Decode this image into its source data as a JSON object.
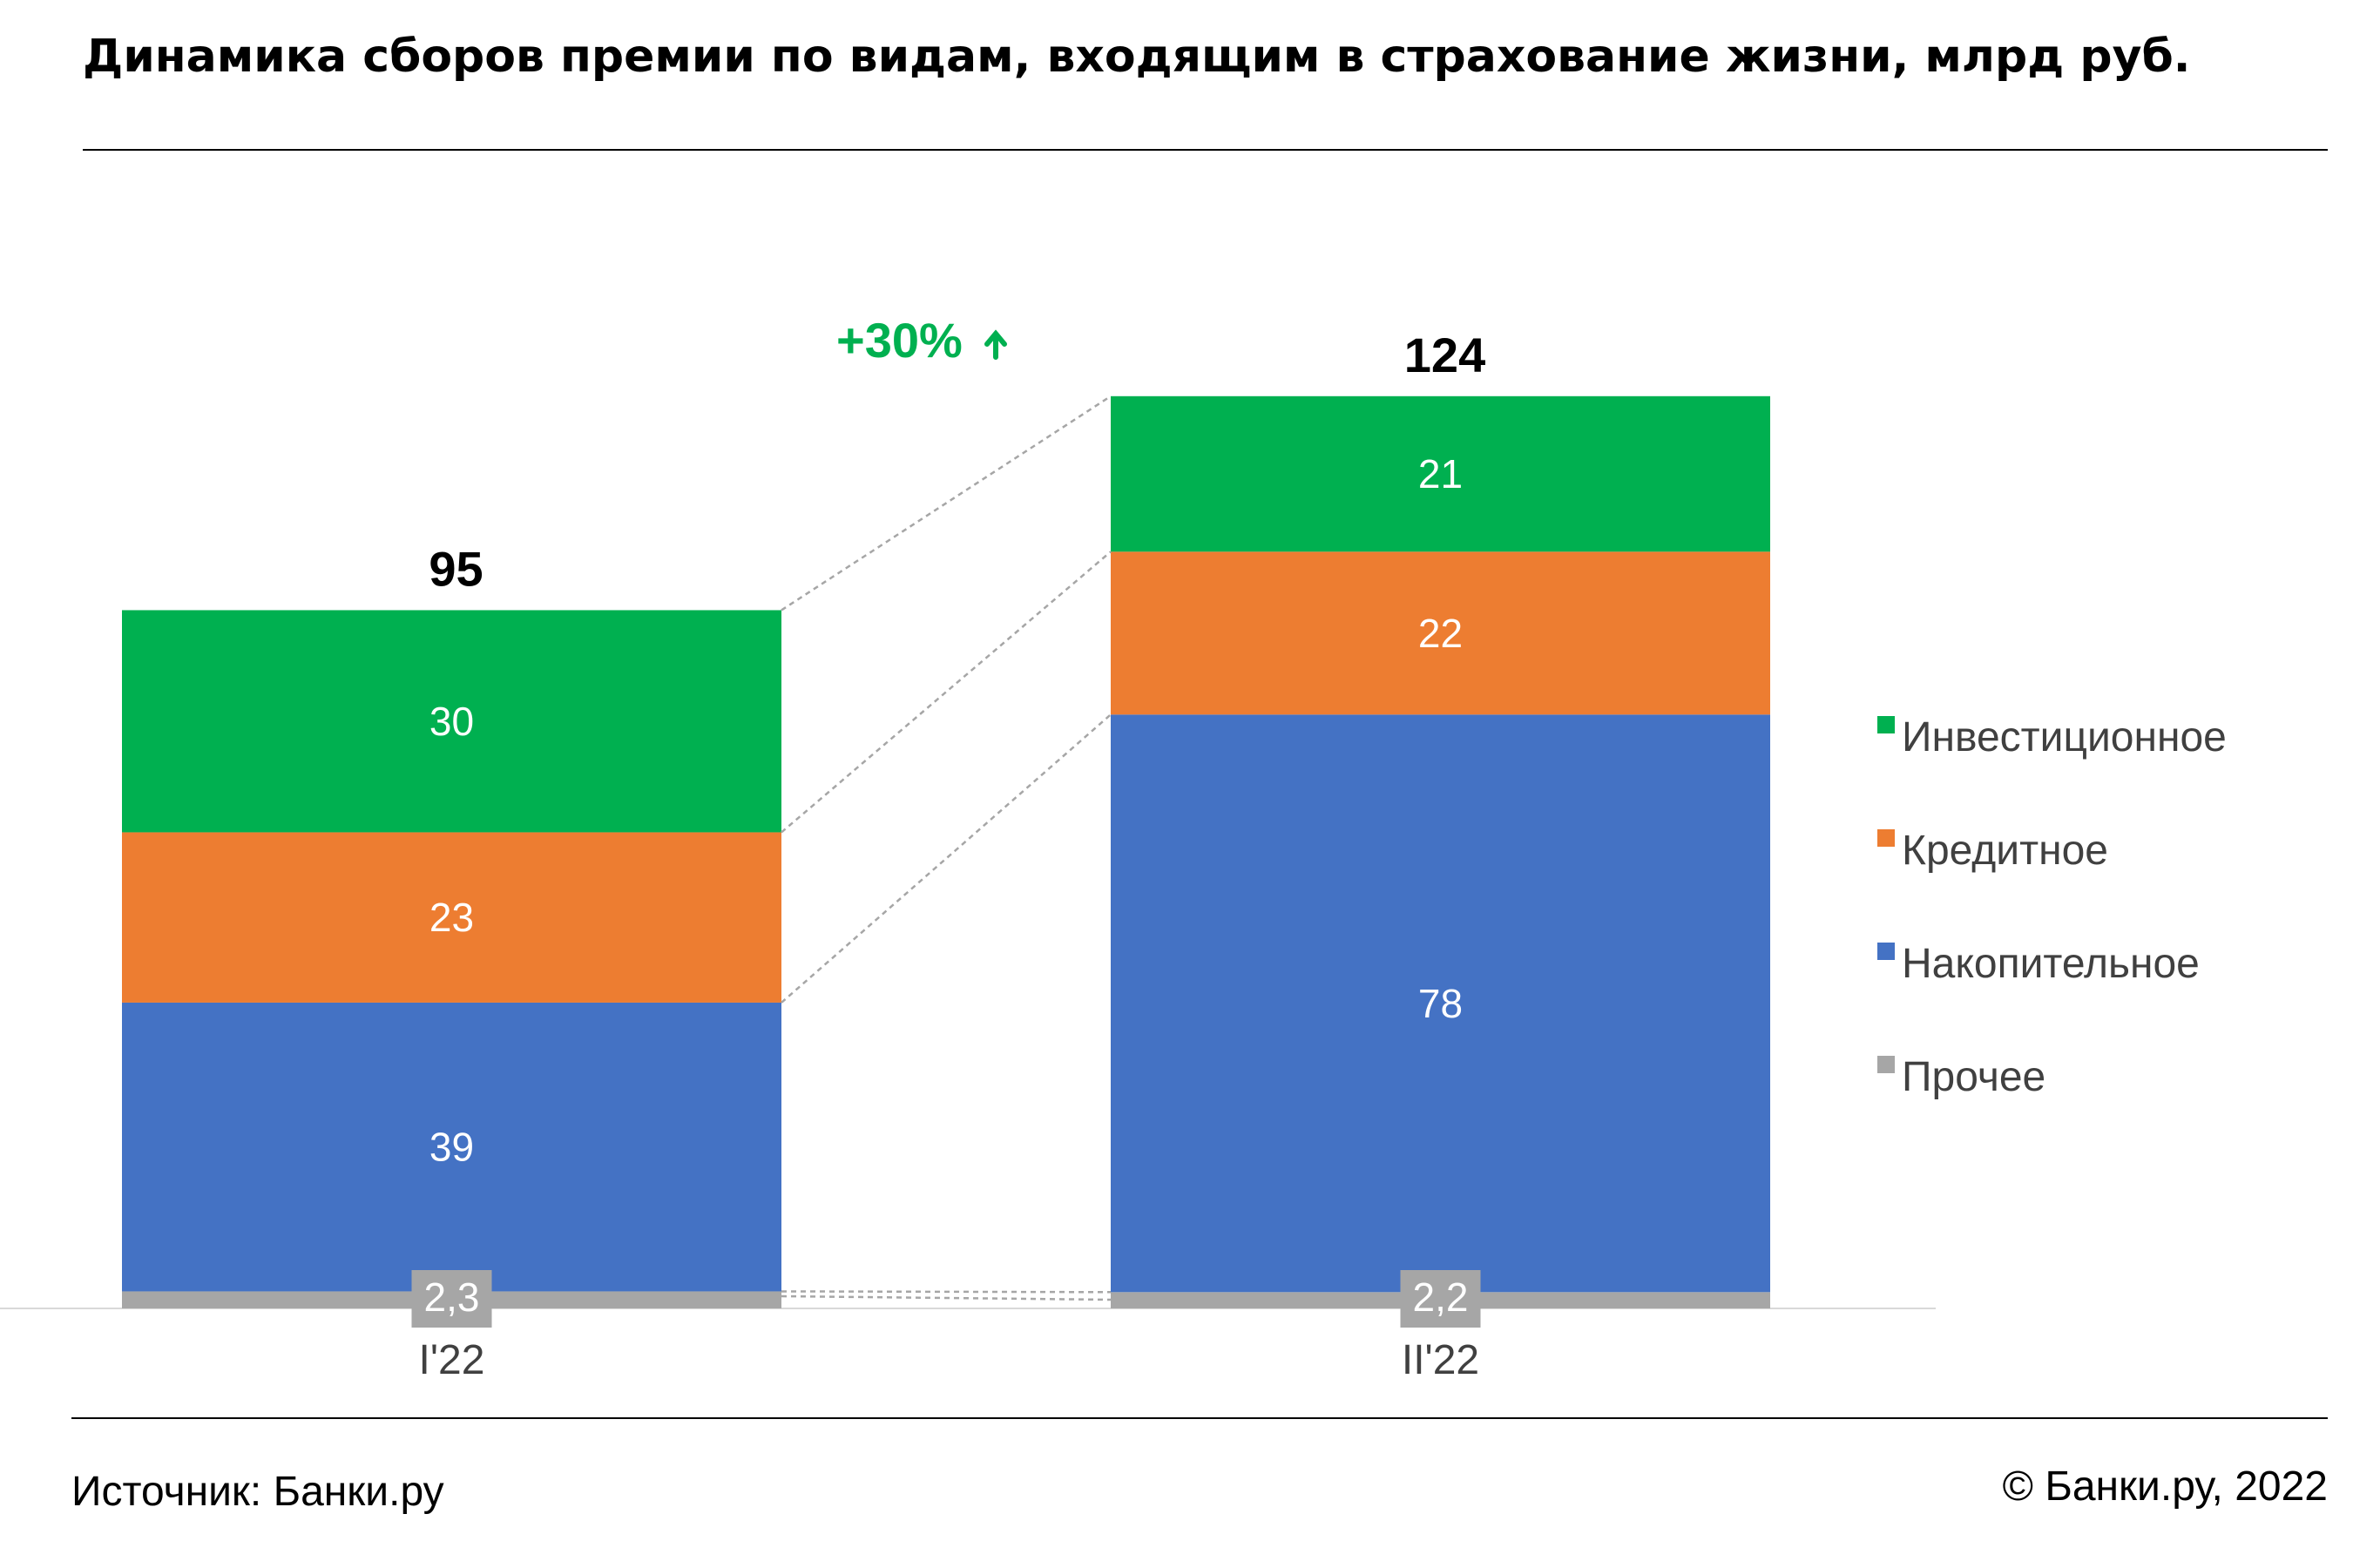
{
  "title": "Динамика сборов премии по видам, входящим в страхование жизни, млрд руб.",
  "source": "Источник: Банки.ру",
  "copyright": "© Банки.ру, 2022",
  "growth_label": "+30%",
  "colors": {
    "invest": "#00B050",
    "credit": "#ED7D31",
    "accum": "#4472C4",
    "other": "#A6A6A6",
    "growth": "#00B050",
    "text": "#000000",
    "axis_text": "#404040"
  },
  "chart_data": {
    "type": "bar",
    "stacked": true,
    "categories": [
      "I'22",
      "II'22"
    ],
    "totals": [
      "95",
      "124"
    ],
    "series": [
      {
        "name": "Прочее",
        "key": "other",
        "values": [
          2.3,
          2.2
        ],
        "labels": [
          "2,3",
          "2,2"
        ]
      },
      {
        "name": "Накопительное",
        "key": "accum",
        "values": [
          39,
          78
        ],
        "labels": [
          "39",
          "78"
        ]
      },
      {
        "name": "Кредитное",
        "key": "credit",
        "values": [
          23,
          22
        ],
        "labels": [
          "23",
          "22"
        ]
      },
      {
        "name": "Инвестиционное",
        "key": "invest",
        "values": [
          30,
          21
        ],
        "labels": [
          "30",
          "21"
        ]
      }
    ],
    "legend_order": [
      "Инвестиционное",
      "Кредитное",
      "Накопительное",
      "Прочее"
    ],
    "legend_position": "right",
    "grid": false,
    "ylim": [
      0,
      124
    ]
  }
}
